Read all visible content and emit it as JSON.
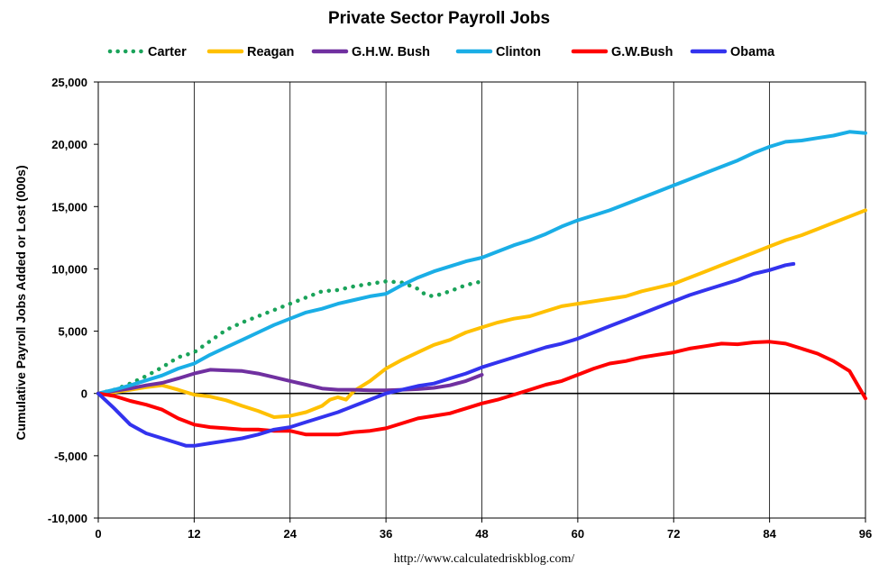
{
  "chart_data": {
    "type": "line",
    "title": "Private Sector Payroll Jobs",
    "xlabel": "",
    "ylabel": "Cumulative Payroll Jobs Added or  Lost (000s)",
    "source": "http://www.calculatedriskblog.com/",
    "xlim": [
      0,
      96
    ],
    "ylim": [
      -10000,
      25000
    ],
    "x_ticks": [
      0,
      12,
      24,
      36,
      48,
      60,
      72,
      84,
      96
    ],
    "y_ticks": [
      -10000,
      -5000,
      0,
      5000,
      10000,
      15000,
      20000,
      25000
    ],
    "y_tick_labels": [
      "-10,000",
      "-5,000",
      "0",
      "5,000",
      "10,000",
      "15,000",
      "20,000",
      "25,000"
    ],
    "grid": "vertical",
    "legend_position": "top",
    "series": [
      {
        "name": "Carter",
        "color": "#1aa35a",
        "style": "dotted",
        "points": [
          [
            0,
            0
          ],
          [
            2,
            300
          ],
          [
            4,
            800
          ],
          [
            6,
            1400
          ],
          [
            8,
            2100
          ],
          [
            10,
            2900
          ],
          [
            12,
            3300
          ],
          [
            14,
            4200
          ],
          [
            16,
            5100
          ],
          [
            18,
            5700
          ],
          [
            20,
            6200
          ],
          [
            22,
            6700
          ],
          [
            24,
            7200
          ],
          [
            26,
            7700
          ],
          [
            28,
            8200
          ],
          [
            30,
            8300
          ],
          [
            32,
            8600
          ],
          [
            34,
            8800
          ],
          [
            36,
            9000
          ],
          [
            38,
            8900
          ],
          [
            40,
            8400
          ],
          [
            41,
            7900
          ],
          [
            42,
            7800
          ],
          [
            44,
            8200
          ],
          [
            46,
            8700
          ],
          [
            48,
            9000
          ]
        ]
      },
      {
        "name": "Reagan",
        "color": "#ffc000",
        "style": "solid",
        "points": [
          [
            0,
            0
          ],
          [
            2,
            100
          ],
          [
            4,
            300
          ],
          [
            6,
            500
          ],
          [
            8,
            650
          ],
          [
            10,
            300
          ],
          [
            12,
            -100
          ],
          [
            14,
            -250
          ],
          [
            16,
            -550
          ],
          [
            18,
            -1000
          ],
          [
            20,
            -1400
          ],
          [
            22,
            -1900
          ],
          [
            24,
            -1800
          ],
          [
            26,
            -1500
          ],
          [
            28,
            -1000
          ],
          [
            29,
            -500
          ],
          [
            30,
            -300
          ],
          [
            31,
            -500
          ],
          [
            32,
            200
          ],
          [
            34,
            1000
          ],
          [
            36,
            2000
          ],
          [
            38,
            2700
          ],
          [
            40,
            3300
          ],
          [
            42,
            3900
          ],
          [
            44,
            4300
          ],
          [
            46,
            4900
          ],
          [
            48,
            5300
          ],
          [
            50,
            5700
          ],
          [
            52,
            6000
          ],
          [
            54,
            6200
          ],
          [
            56,
            6600
          ],
          [
            58,
            7000
          ],
          [
            60,
            7200
          ],
          [
            62,
            7400
          ],
          [
            64,
            7600
          ],
          [
            66,
            7800
          ],
          [
            68,
            8200
          ],
          [
            70,
            8500
          ],
          [
            72,
            8800
          ],
          [
            74,
            9300
          ],
          [
            76,
            9800
          ],
          [
            78,
            10300
          ],
          [
            80,
            10800
          ],
          [
            82,
            11300
          ],
          [
            84,
            11800
          ],
          [
            86,
            12300
          ],
          [
            88,
            12700
          ],
          [
            90,
            13200
          ],
          [
            92,
            13700
          ],
          [
            94,
            14200
          ],
          [
            96,
            14700
          ]
        ]
      },
      {
        "name": "G.H.W. Bush",
        "color": "#7030a0",
        "style": "solid",
        "points": [
          [
            0,
            0
          ],
          [
            2,
            200
          ],
          [
            4,
            400
          ],
          [
            6,
            650
          ],
          [
            8,
            850
          ],
          [
            10,
            1200
          ],
          [
            12,
            1600
          ],
          [
            14,
            1900
          ],
          [
            16,
            1850
          ],
          [
            18,
            1800
          ],
          [
            20,
            1600
          ],
          [
            22,
            1300
          ],
          [
            24,
            1000
          ],
          [
            26,
            700
          ],
          [
            28,
            400
          ],
          [
            30,
            300
          ],
          [
            32,
            300
          ],
          [
            34,
            250
          ],
          [
            36,
            250
          ],
          [
            38,
            300
          ],
          [
            40,
            350
          ],
          [
            42,
            450
          ],
          [
            44,
            650
          ],
          [
            46,
            1000
          ],
          [
            48,
            1500
          ]
        ]
      },
      {
        "name": "Clinton",
        "color": "#1aaee6",
        "style": "solid",
        "points": [
          [
            0,
            0
          ],
          [
            2,
            300
          ],
          [
            4,
            650
          ],
          [
            6,
            1050
          ],
          [
            8,
            1450
          ],
          [
            10,
            2000
          ],
          [
            12,
            2400
          ],
          [
            14,
            3100
          ],
          [
            16,
            3700
          ],
          [
            18,
            4300
          ],
          [
            20,
            4900
          ],
          [
            22,
            5500
          ],
          [
            24,
            6000
          ],
          [
            26,
            6500
          ],
          [
            28,
            6800
          ],
          [
            30,
            7200
          ],
          [
            32,
            7500
          ],
          [
            34,
            7800
          ],
          [
            36,
            8000
          ],
          [
            38,
            8700
          ],
          [
            40,
            9300
          ],
          [
            42,
            9800
          ],
          [
            44,
            10200
          ],
          [
            46,
            10600
          ],
          [
            48,
            10900
          ],
          [
            50,
            11400
          ],
          [
            52,
            11900
          ],
          [
            54,
            12300
          ],
          [
            56,
            12800
          ],
          [
            58,
            13400
          ],
          [
            60,
            13900
          ],
          [
            62,
            14300
          ],
          [
            64,
            14700
          ],
          [
            66,
            15200
          ],
          [
            68,
            15700
          ],
          [
            70,
            16200
          ],
          [
            72,
            16700
          ],
          [
            74,
            17200
          ],
          [
            76,
            17700
          ],
          [
            78,
            18200
          ],
          [
            80,
            18700
          ],
          [
            82,
            19300
          ],
          [
            84,
            19800
          ],
          [
            86,
            20200
          ],
          [
            88,
            20300
          ],
          [
            90,
            20500
          ],
          [
            92,
            20700
          ],
          [
            94,
            21000
          ],
          [
            96,
            20900
          ]
        ]
      },
      {
        "name": "G.W.Bush",
        "color": "#ff0000",
        "style": "solid",
        "points": [
          [
            0,
            0
          ],
          [
            2,
            -200
          ],
          [
            4,
            -600
          ],
          [
            6,
            -900
          ],
          [
            8,
            -1300
          ],
          [
            10,
            -2000
          ],
          [
            12,
            -2500
          ],
          [
            14,
            -2700
          ],
          [
            16,
            -2800
          ],
          [
            18,
            -2900
          ],
          [
            20,
            -2900
          ],
          [
            22,
            -3000
          ],
          [
            24,
            -3000
          ],
          [
            26,
            -3300
          ],
          [
            28,
            -3300
          ],
          [
            30,
            -3300
          ],
          [
            32,
            -3100
          ],
          [
            34,
            -3000
          ],
          [
            36,
            -2800
          ],
          [
            38,
            -2400
          ],
          [
            40,
            -2000
          ],
          [
            42,
            -1800
          ],
          [
            44,
            -1600
          ],
          [
            46,
            -1200
          ],
          [
            48,
            -800
          ],
          [
            50,
            -500
          ],
          [
            52,
            -100
          ],
          [
            54,
            300
          ],
          [
            56,
            700
          ],
          [
            58,
            1000
          ],
          [
            60,
            1500
          ],
          [
            62,
            2000
          ],
          [
            64,
            2400
          ],
          [
            66,
            2600
          ],
          [
            68,
            2900
          ],
          [
            70,
            3100
          ],
          [
            72,
            3300
          ],
          [
            74,
            3600
          ],
          [
            76,
            3800
          ],
          [
            78,
            4000
          ],
          [
            80,
            3950
          ],
          [
            82,
            4100
          ],
          [
            84,
            4150
          ],
          [
            86,
            4000
          ],
          [
            88,
            3600
          ],
          [
            90,
            3200
          ],
          [
            92,
            2600
          ],
          [
            94,
            1800
          ],
          [
            96,
            -400
          ]
        ]
      },
      {
        "name": "Obama",
        "color": "#3333ee",
        "style": "solid",
        "points": [
          [
            0,
            0
          ],
          [
            2,
            -1200
          ],
          [
            4,
            -2500
          ],
          [
            6,
            -3200
          ],
          [
            8,
            -3600
          ],
          [
            10,
            -4000
          ],
          [
            11,
            -4200
          ],
          [
            12,
            -4200
          ],
          [
            14,
            -4000
          ],
          [
            16,
            -3800
          ],
          [
            18,
            -3600
          ],
          [
            20,
            -3300
          ],
          [
            22,
            -2900
          ],
          [
            24,
            -2700
          ],
          [
            26,
            -2300
          ],
          [
            28,
            -1900
          ],
          [
            30,
            -1500
          ],
          [
            32,
            -1000
          ],
          [
            34,
            -500
          ],
          [
            36,
            0
          ],
          [
            38,
            300
          ],
          [
            40,
            600
          ],
          [
            42,
            800
          ],
          [
            44,
            1200
          ],
          [
            46,
            1600
          ],
          [
            48,
            2100
          ],
          [
            50,
            2500
          ],
          [
            52,
            2900
          ],
          [
            54,
            3300
          ],
          [
            56,
            3700
          ],
          [
            58,
            4000
          ],
          [
            60,
            4400
          ],
          [
            62,
            4900
          ],
          [
            64,
            5400
          ],
          [
            66,
            5900
          ],
          [
            68,
            6400
          ],
          [
            70,
            6900
          ],
          [
            72,
            7400
          ],
          [
            74,
            7900
          ],
          [
            76,
            8300
          ],
          [
            78,
            8700
          ],
          [
            80,
            9100
          ],
          [
            82,
            9600
          ],
          [
            84,
            9900
          ],
          [
            86,
            10300
          ],
          [
            87,
            10400
          ]
        ]
      }
    ]
  }
}
